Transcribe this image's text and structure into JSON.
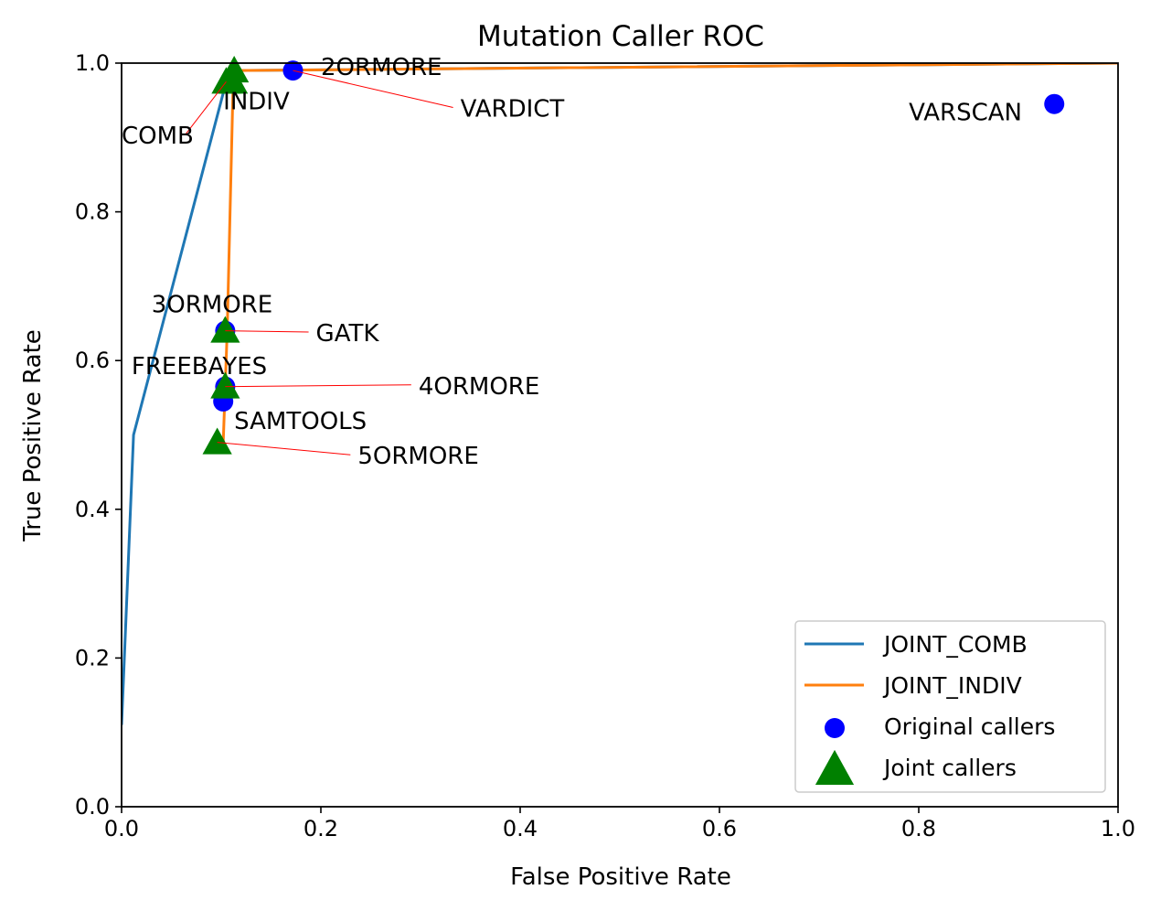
{
  "chart_data": {
    "type": "line",
    "title": "Mutation Caller ROC",
    "xlabel": "False Positive Rate",
    "ylabel": "True Positive Rate",
    "xlim": [
      0.0,
      1.0
    ],
    "ylim": [
      0.0,
      1.0
    ],
    "xticks": [
      "0.0",
      "0.2",
      "0.4",
      "0.6",
      "0.8",
      "1.0"
    ],
    "yticks": [
      "0.0",
      "0.2",
      "0.4",
      "0.6",
      "0.8",
      "1.0"
    ],
    "grid": false,
    "legend_position": "bottom-right",
    "series": [
      {
        "name": "JOINT_COMB",
        "kind": "line",
        "color": "#1f77b4",
        "x": [
          0.0,
          0.012,
          0.105,
          0.113,
          1.0
        ],
        "y": [
          0.11,
          0.5,
          0.975,
          0.99,
          1.0
        ]
      },
      {
        "name": "JOINT_INDIV",
        "kind": "line",
        "color": "#ff7f0e",
        "x": [
          0.096,
          0.102,
          0.104,
          0.106,
          0.112,
          0.113,
          1.0
        ],
        "y": [
          0.49,
          0.49,
          0.565,
          0.64,
          0.975,
          0.99,
          1.0
        ]
      },
      {
        "name": "Original callers",
        "kind": "scatter",
        "marker": "circle",
        "color": "#0000ff",
        "points": [
          {
            "label": "VARDICT",
            "x": 0.172,
            "y": 0.99
          },
          {
            "label": "VARSCAN",
            "x": 0.936,
            "y": 0.945
          },
          {
            "label": "GATK",
            "x": 0.104,
            "y": 0.64
          },
          {
            "label": "FREEBAYES",
            "x": 0.104,
            "y": 0.565
          },
          {
            "label": "SAMTOOLS",
            "x": 0.102,
            "y": 0.545
          }
        ]
      },
      {
        "name": "Joint callers",
        "kind": "scatter",
        "marker": "triangle",
        "color": "#008000",
        "points": [
          {
            "label": "COMB",
            "x": 0.105,
            "y": 0.975
          },
          {
            "label": "INDIV",
            "x": 0.112,
            "y": 0.975
          },
          {
            "label": "2ORMORE",
            "x": 0.113,
            "y": 0.99
          },
          {
            "label": "3ORMORE",
            "x": 0.104,
            "y": 0.64
          },
          {
            "label": "4ORMORE",
            "x": 0.104,
            "y": 0.565
          },
          {
            "label": "5ORMORE",
            "x": 0.096,
            "y": 0.49
          }
        ]
      }
    ],
    "annotations": [
      {
        "text": "2ORMORE",
        "x": 0.113,
        "y": 0.99,
        "text_x": 0.2,
        "text_y": 0.984,
        "leader": false
      },
      {
        "text": "VARDICT",
        "x": 0.172,
        "y": 0.99,
        "text_x": 0.34,
        "text_y": 0.928,
        "leader": true
      },
      {
        "text": "INDIV",
        "x": 0.112,
        "y": 0.975,
        "text_x": 0.102,
        "text_y": 0.938,
        "leader": false
      },
      {
        "text": "COMB",
        "x": 0.105,
        "y": 0.975,
        "text_x": 0.0,
        "text_y": 0.892,
        "leader": true
      },
      {
        "text": "VARSCAN",
        "x": 0.936,
        "y": 0.945,
        "text_x": 0.79,
        "text_y": 0.923,
        "leader": false
      },
      {
        "text": "3ORMORE",
        "x": 0.104,
        "y": 0.64,
        "text_x": 0.03,
        "text_y": 0.665,
        "leader": false
      },
      {
        "text": "GATK",
        "x": 0.104,
        "y": 0.64,
        "text_x": 0.195,
        "text_y": 0.626,
        "leader": true
      },
      {
        "text": "FREEBAYES",
        "x": 0.104,
        "y": 0.565,
        "text_x": 0.01,
        "text_y": 0.582,
        "leader": false
      },
      {
        "text": "4ORMORE",
        "x": 0.104,
        "y": 0.565,
        "text_x": 0.298,
        "text_y": 0.555,
        "leader": true
      },
      {
        "text": "SAMTOOLS",
        "x": 0.102,
        "y": 0.545,
        "text_x": 0.113,
        "text_y": 0.508,
        "leader": false
      },
      {
        "text": "5ORMORE",
        "x": 0.096,
        "y": 0.49,
        "text_x": 0.237,
        "text_y": 0.461,
        "leader": true
      }
    ]
  }
}
